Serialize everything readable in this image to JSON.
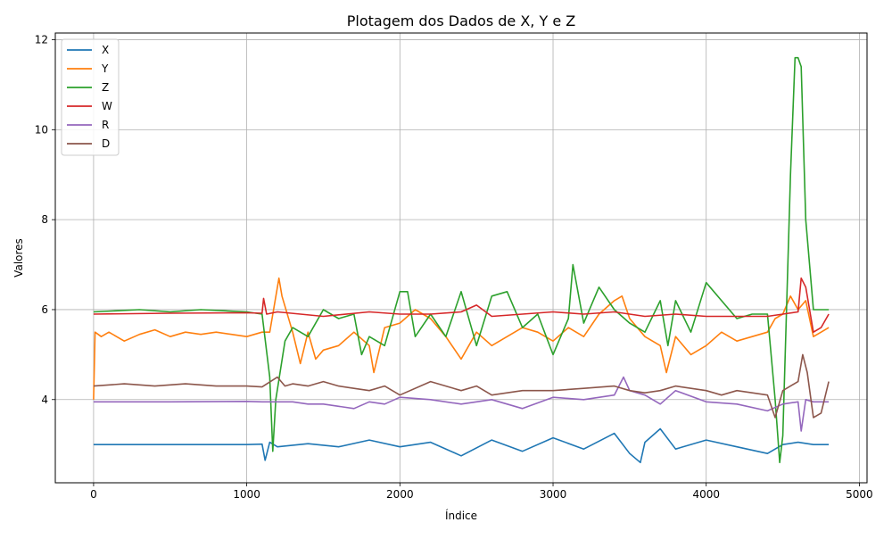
{
  "chart_data": {
    "type": "line",
    "title": "Plotagem dos Dados de X, Y e Z",
    "xlabel": "Índice",
    "ylabel": "Valores",
    "xlim": [
      -250,
      5050
    ],
    "ylim": [
      2.15,
      12.15
    ],
    "x_ticks": [
      0,
      1000,
      2000,
      3000,
      4000,
      5000
    ],
    "y_ticks": [
      4,
      6,
      8,
      10,
      12
    ],
    "x_tick_labels": [
      "0",
      "1000",
      "2000",
      "3000",
      "4000",
      "5000"
    ],
    "y_tick_labels": [
      "4",
      "6",
      "8",
      "10",
      "12"
    ],
    "grid": true,
    "legend_position": "top-left",
    "series": [
      {
        "name": "X",
        "color": "#1f77b4",
        "x": [
          0,
          500,
          1000,
          1100,
          1120,
          1150,
          1200,
          1400,
          1600,
          1800,
          2000,
          2200,
          2400,
          2600,
          2800,
          3000,
          3200,
          3400,
          3500,
          3570,
          3600,
          3700,
          3800,
          4000,
          4200,
          4400,
          4500,
          4600,
          4700,
          4800
        ],
        "y": [
          3.0,
          3.0,
          3.0,
          3.01,
          2.65,
          3.05,
          2.95,
          3.02,
          2.95,
          3.1,
          2.95,
          3.05,
          2.75,
          3.1,
          2.85,
          3.15,
          2.9,
          3.25,
          2.8,
          2.6,
          3.05,
          3.35,
          2.9,
          3.1,
          2.95,
          2.8,
          3.0,
          3.05,
          3.0,
          3.0
        ]
      },
      {
        "name": "Y",
        "color": "#ff7f0e",
        "x": [
          0,
          10,
          50,
          100,
          200,
          300,
          400,
          500,
          600,
          700,
          800,
          900,
          1000,
          1100,
          1150,
          1200,
          1210,
          1230,
          1300,
          1350,
          1400,
          1450,
          1500,
          1600,
          1700,
          1800,
          1830,
          1900,
          2000,
          2100,
          2200,
          2300,
          2400,
          2500,
          2600,
          2700,
          2800,
          2900,
          3000,
          3100,
          3200,
          3300,
          3400,
          3450,
          3500,
          3600,
          3700,
          3740,
          3800,
          3900,
          4000,
          4100,
          4200,
          4300,
          4400,
          4450,
          4500,
          4550,
          4600,
          4650,
          4700,
          4750,
          4800
        ],
        "y": [
          4.0,
          5.5,
          5.4,
          5.5,
          5.3,
          5.45,
          5.55,
          5.4,
          5.5,
          5.45,
          5.5,
          5.45,
          5.4,
          5.5,
          5.5,
          6.5,
          6.7,
          6.3,
          5.5,
          4.8,
          5.5,
          4.9,
          5.1,
          5.2,
          5.5,
          5.2,
          4.6,
          5.6,
          5.7,
          6.0,
          5.8,
          5.4,
          4.9,
          5.5,
          5.2,
          5.4,
          5.6,
          5.5,
          5.3,
          5.6,
          5.4,
          5.9,
          6.2,
          6.3,
          5.8,
          5.4,
          5.2,
          4.6,
          5.4,
          5.0,
          5.2,
          5.5,
          5.3,
          5.4,
          5.5,
          5.8,
          5.9,
          6.3,
          6.0,
          6.2,
          5.4,
          5.5,
          5.6
        ]
      },
      {
        "name": "Z",
        "color": "#2ca02c",
        "x": [
          0,
          300,
          500,
          700,
          1000,
          1100,
          1150,
          1170,
          1190,
          1250,
          1300,
          1400,
          1500,
          1600,
          1700,
          1750,
          1800,
          1900,
          2000,
          2050,
          2100,
          2200,
          2300,
          2400,
          2500,
          2600,
          2700,
          2800,
          2900,
          3000,
          3100,
          3130,
          3200,
          3300,
          3400,
          3500,
          3600,
          3700,
          3750,
          3800,
          3900,
          4000,
          4100,
          4200,
          4300,
          4400,
          4450,
          4480,
          4500,
          4550,
          4580,
          4600,
          4620,
          4650,
          4700,
          4800
        ],
        "y": [
          5.95,
          6.0,
          5.95,
          6.0,
          5.95,
          5.9,
          4.5,
          2.85,
          4.0,
          5.3,
          5.6,
          5.4,
          6.0,
          5.8,
          5.9,
          5.0,
          5.4,
          5.2,
          6.4,
          6.4,
          5.4,
          5.9,
          5.4,
          6.4,
          5.2,
          6.3,
          6.4,
          5.6,
          5.9,
          5.0,
          5.8,
          7.0,
          5.7,
          6.5,
          6.0,
          5.7,
          5.5,
          6.2,
          5.2,
          6.2,
          5.5,
          6.6,
          6.2,
          5.8,
          5.9,
          5.9,
          4.0,
          2.6,
          3.2,
          9.0,
          11.6,
          11.6,
          11.4,
          8.0,
          6.0,
          6.0
        ]
      },
      {
        "name": "W",
        "color": "#d62728",
        "x": [
          0,
          500,
          1000,
          1100,
          1110,
          1130,
          1200,
          1500,
          1800,
          2000,
          2200,
          2400,
          2500,
          2600,
          2800,
          3000,
          3200,
          3400,
          3600,
          3800,
          4000,
          4200,
          4400,
          4500,
          4600,
          4620,
          4650,
          4700,
          4750,
          4800
        ],
        "y": [
          5.9,
          5.92,
          5.93,
          5.92,
          6.25,
          5.9,
          5.95,
          5.85,
          5.95,
          5.9,
          5.9,
          5.95,
          6.1,
          5.85,
          5.9,
          5.95,
          5.9,
          5.95,
          5.85,
          5.9,
          5.85,
          5.85,
          5.85,
          5.9,
          5.95,
          6.7,
          6.5,
          5.5,
          5.6,
          5.9
        ]
      },
      {
        "name": "R",
        "color": "#9467bd",
        "x": [
          0,
          500,
          1000,
          1100,
          1200,
          1300,
          1400,
          1500,
          1600,
          1700,
          1800,
          1900,
          2000,
          2200,
          2400,
          2600,
          2800,
          3000,
          3200,
          3400,
          3460,
          3500,
          3600,
          3700,
          3800,
          4000,
          4200,
          4400,
          4500,
          4600,
          4620,
          4650,
          4700,
          4800
        ],
        "y": [
          3.95,
          3.95,
          3.96,
          3.95,
          3.95,
          3.95,
          3.9,
          3.9,
          3.85,
          3.8,
          3.95,
          3.9,
          4.05,
          4.0,
          3.9,
          4.0,
          3.8,
          4.05,
          4.0,
          4.1,
          4.5,
          4.2,
          4.1,
          3.9,
          4.2,
          3.95,
          3.9,
          3.75,
          3.9,
          3.95,
          3.3,
          4.0,
          3.95,
          3.95
        ]
      },
      {
        "name": "D",
        "color": "#8c564b",
        "x": [
          0,
          200,
          400,
          600,
          800,
          1000,
          1100,
          1200,
          1250,
          1300,
          1400,
          1500,
          1600,
          1700,
          1800,
          1900,
          2000,
          2200,
          2400,
          2500,
          2600,
          2800,
          3000,
          3200,
          3400,
          3500,
          3600,
          3700,
          3800,
          4000,
          4100,
          4200,
          4400,
          4450,
          4500,
          4550,
          4600,
          4630,
          4660,
          4700,
          4750,
          4800
        ],
        "y": [
          4.3,
          4.35,
          4.3,
          4.35,
          4.3,
          4.3,
          4.28,
          4.5,
          4.3,
          4.35,
          4.3,
          4.4,
          4.3,
          4.25,
          4.2,
          4.3,
          4.1,
          4.4,
          4.2,
          4.3,
          4.1,
          4.2,
          4.2,
          4.25,
          4.3,
          4.2,
          4.15,
          4.2,
          4.3,
          4.2,
          4.1,
          4.2,
          4.1,
          3.6,
          4.2,
          4.3,
          4.4,
          5.0,
          4.6,
          3.6,
          3.7,
          4.4
        ]
      }
    ]
  }
}
